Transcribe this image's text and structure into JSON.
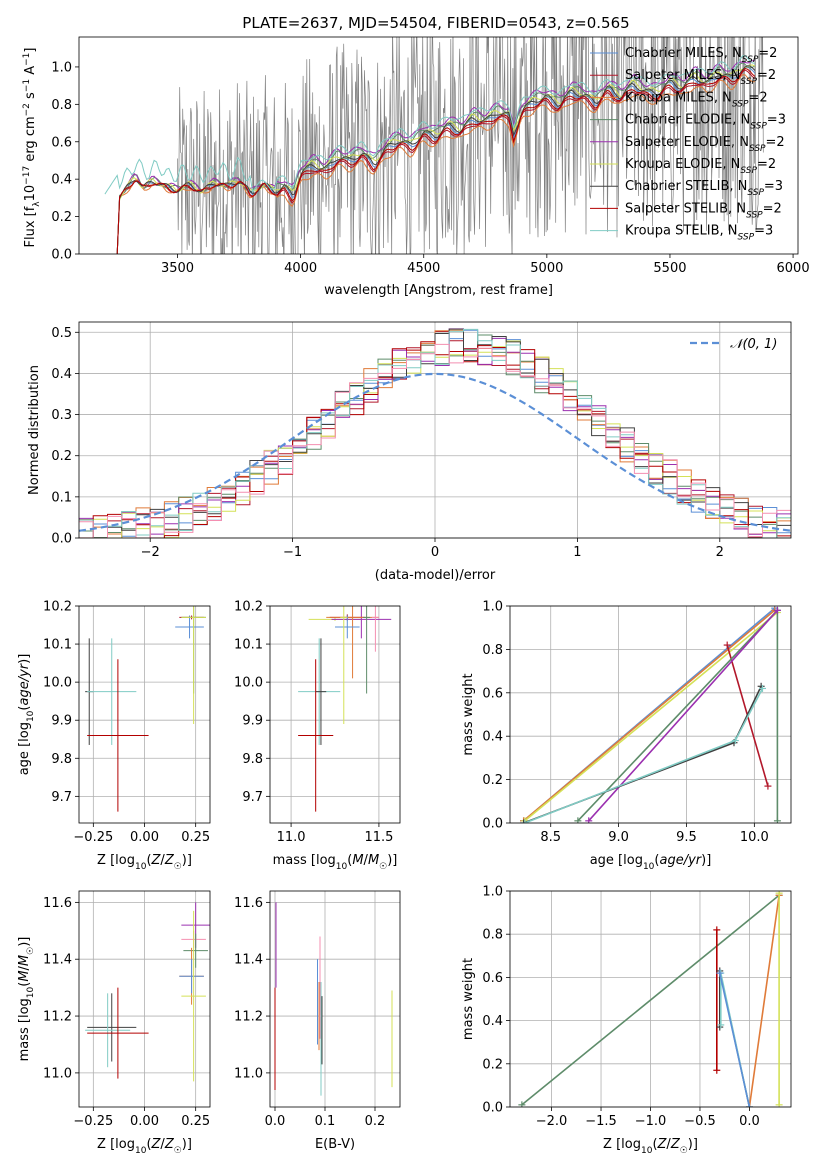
{
  "title": "PLATE=2637, MJD=54504, FIBERID=0543, z=0.565",
  "colors": {
    "Chabrier MILES": "#5b8fd6",
    "Salpeter MILES": "#b2182b",
    "Kroupa MILES": "#e07b39",
    "Chabrier ELODIE": "#5e8c6a",
    "Salpeter ELODIE": "#9b30b0",
    "Kroupa ELODIE": "#d4e157",
    "Chabrier STELIB": "#404040",
    "Salpeter STELIB": "#b30000",
    "Kroupa STELIB": "#80cbc4",
    "data": "#808080",
    "gauss": "#5b8fd6",
    "pink": "#f48fb1"
  },
  "legend_spectrum": [
    {
      "key": "Chabrier MILES",
      "text": "Chabrier MILES, N",
      "sub": "SSP",
      "tail": "=2"
    },
    {
      "key": "Salpeter MILES",
      "text": "Salpeter MILES, N",
      "sub": "SSP",
      "tail": "=2"
    },
    {
      "key": "Kroupa MILES",
      "text": "Kroupa MILES, N",
      "sub": "SSP",
      "tail": "=2"
    },
    {
      "key": "Chabrier ELODIE",
      "text": "Chabrier ELODIE, N",
      "sub": "SSP",
      "tail": "=3"
    },
    {
      "key": "Salpeter ELODIE",
      "text": "Salpeter ELODIE, N",
      "sub": "SSP",
      "tail": "=2"
    },
    {
      "key": "Kroupa ELODIE",
      "text": "Kroupa ELODIE, N",
      "sub": "SSP",
      "tail": "=2"
    },
    {
      "key": "Chabrier STELIB",
      "text": "Chabrier STELIB, N",
      "sub": "SSP",
      "tail": "=3"
    },
    {
      "key": "Salpeter STELIB",
      "text": "Salpeter STELIB, N",
      "sub": "SSP",
      "tail": "=2"
    },
    {
      "key": "Kroupa STELIB",
      "text": "Kroupa STELIB, N",
      "sub": "SSP",
      "tail": "=3"
    }
  ],
  "chart_data": [
    {
      "id": "spectrum",
      "type": "line",
      "title": "PLATE=2637, MJD=54504, FIBERID=0543, z=0.565",
      "xlabel": "wavelength [Angstrom, rest frame]",
      "ylabel": "Flux [f",
      "ylabel_full": "Flux [fλ10⁻¹⁷ erg cm⁻² s⁻¹ A⁻¹]",
      "xlim": [
        3100,
        6020
      ],
      "ylim": [
        0,
        1.16
      ],
      "xticks": [
        3500,
        4000,
        4500,
        5000,
        5500,
        6000
      ],
      "yticks": [
        0.0,
        0.2,
        0.4,
        0.6,
        0.8,
        1.0
      ],
      "grid": false,
      "legend": "top-right",
      "model_knots": {
        "x": [
          3255,
          3265,
          3300,
          3330,
          3360,
          3400,
          3450,
          3500,
          3550,
          3600,
          3650,
          3700,
          3750,
          3800,
          3850,
          3900,
          3935,
          3970,
          4000,
          4050,
          4100,
          4150,
          4200,
          4250,
          4300,
          4350,
          4400,
          4450,
          4500,
          4550,
          4600,
          4650,
          4700,
          4750,
          4800,
          4850,
          4863,
          4900,
          4950,
          5000,
          5050,
          5100,
          5150,
          5200,
          5250,
          5300,
          5350,
          5400,
          5450,
          5500,
          5550,
          5600,
          5650,
          5700,
          5750,
          5800,
          5850
        ],
        "y": [
          0.0,
          0.3,
          0.36,
          0.41,
          0.35,
          0.39,
          0.36,
          0.34,
          0.37,
          0.33,
          0.38,
          0.36,
          0.39,
          0.32,
          0.37,
          0.33,
          0.35,
          0.3,
          0.42,
          0.47,
          0.44,
          0.51,
          0.49,
          0.53,
          0.47,
          0.56,
          0.6,
          0.57,
          0.64,
          0.62,
          0.68,
          0.65,
          0.72,
          0.7,
          0.75,
          0.73,
          0.62,
          0.76,
          0.81,
          0.83,
          0.79,
          0.86,
          0.84,
          0.8,
          0.88,
          0.83,
          0.9,
          0.86,
          0.85,
          0.91,
          0.88,
          0.94,
          0.9,
          0.96,
          0.93,
          0.99,
          0.97
        ]
      },
      "series": [
        {
          "name": "Chabrier MILES, NSSP=2",
          "offset": 0.0
        },
        {
          "name": "Salpeter MILES, NSSP=2",
          "offset": -0.02
        },
        {
          "name": "Kroupa MILES, NSSP=2",
          "offset": -0.04
        },
        {
          "name": "Chabrier ELODIE, NSSP=3",
          "offset": 0.03
        },
        {
          "name": "Salpeter ELODIE, NSSP=2",
          "offset": 0.05
        },
        {
          "name": "Kroupa ELODIE, NSSP=2",
          "offset": 0.02
        },
        {
          "name": "Chabrier STELIB, NSSP=3",
          "offset": 0.01
        },
        {
          "name": "Salpeter STELIB, NSSP=2",
          "offset": -0.01
        },
        {
          "name": "Kroupa STELIB, NSSP=3",
          "offset": 0.06
        }
      ],
      "data_range": [
        3500,
        5880
      ]
    },
    {
      "id": "residuals",
      "type": "line",
      "xlabel": "(data-model)/error",
      "ylabel": "Normed distribution",
      "xlim": [
        -2.5,
        2.5
      ],
      "ylim": [
        0,
        0.525
      ],
      "xticks": [
        -2,
        -1,
        0,
        1,
        2
      ],
      "yticks": [
        0.0,
        0.1,
        0.2,
        0.3,
        0.4,
        0.5
      ],
      "grid": true,
      "legend": "top-right",
      "gauss_label": "𝒩(0, 1)",
      "bin_width": 0.1
    },
    {
      "id": "age-Z",
      "type": "scatter",
      "xlabel": "Z [log10(Z/Z☉)]",
      "ylabel": "age  [log10(age/yr)]",
      "xlim": [
        -0.32,
        0.32
      ],
      "ylim": [
        9.63,
        10.2
      ],
      "xticks": [
        -0.25,
        0.0,
        0.25
      ],
      "xticklabels": [
        "−0.25",
        "0.00",
        "0.25"
      ],
      "yticks": [
        9.7,
        9.8,
        9.9,
        10.0,
        10.1,
        10.2
      ],
      "grid": true,
      "crosses": [
        {
          "c": "Chabrier MILES",
          "x": 0.22,
          "xe": 0.07,
          "y": 10.145,
          "ye": 0.03
        },
        {
          "c": "Salpeter MILES",
          "x": 0.23,
          "xe": 0.06,
          "y": 10.17,
          "ye": 0.005
        },
        {
          "c": "Chabrier ELODIE",
          "x": 0.24,
          "xe": 0.06,
          "y": 10.17,
          "ye": 0.2
        },
        {
          "c": "Kroupa ELODIE",
          "x": 0.24,
          "xe": 0.06,
          "y": 10.17,
          "ye": 0.28
        },
        {
          "c": "Chabrier STELIB",
          "x": -0.27,
          "xe": 0.02,
          "y": 9.975,
          "ye": 0.14
        },
        {
          "c": "Kroupa STELIB",
          "x": -0.16,
          "xe": 0.12,
          "y": 9.975,
          "ye": 0.14
        },
        {
          "c": "Salpeter STELIB",
          "x": -0.13,
          "xe": 0.15,
          "y": 9.86,
          "ye": 0.2
        }
      ]
    },
    {
      "id": "age-mass",
      "type": "scatter",
      "xlabel": "mass [log10(M/M☉)]",
      "ylabel": "",
      "xlim": [
        10.88,
        11.62
      ],
      "ylim": [
        9.63,
        10.2
      ],
      "xticks": [
        11.0,
        11.5
      ],
      "xticklabels": [
        "11.0",
        "11.5"
      ],
      "yticks": [
        9.7,
        9.8,
        9.9,
        10.0,
        10.1,
        10.2
      ],
      "grid": true,
      "crosses": [
        {
          "c": "Kroupa ELODIE",
          "x": 11.25,
          "xe": 0.15,
          "y": 10.165,
          "ye": 0.004
        },
        {
          "c": "Salpeter ELODIE",
          "x": 11.4,
          "xe": 0.17,
          "y": 10.165,
          "ye": 0.05
        },
        {
          "c": "Salpeter MILES",
          "x": 11.32,
          "xe": 0.1,
          "y": 10.17,
          "ye": 0.008
        },
        {
          "c": "Kroupa MILES",
          "x": 11.35,
          "xe": 0.15,
          "y": 10.17,
          "ye": 0.16
        },
        {
          "c": "Chabrier MILES",
          "x": 11.32,
          "xe": 0.07,
          "y": 10.145,
          "ye": 0.03
        },
        {
          "c": "pink",
          "x": 11.48,
          "xe": 0.02,
          "y": 10.17,
          "ye": 0.09
        },
        {
          "c": "Chabrier ELODIE",
          "x": 11.43,
          "xe": 0.02,
          "y": 10.17,
          "ye": 0.2
        },
        {
          "c": "Kroupa ELODIE",
          "x": 11.3,
          "xe": 0.02,
          "y": 10.17,
          "ye": 0.28
        },
        {
          "c": "Kroupa STELIB",
          "x": 11.16,
          "xe": 0.12,
          "y": 9.975,
          "ye": 0.14
        },
        {
          "c": "Chabrier STELIB",
          "x": 11.17,
          "xe": 0.03,
          "y": 9.975,
          "ye": 0.14
        },
        {
          "c": "Salpeter STELIB",
          "x": 11.14,
          "xe": 0.1,
          "y": 9.86,
          "ye": 0.2
        }
      ]
    },
    {
      "id": "weight-age",
      "type": "line",
      "xlabel": "age  [log10(age/yr)]",
      "ylabel": "mass weight",
      "xlim": [
        8.2,
        10.27
      ],
      "ylim": [
        0,
        1.0
      ],
      "xticks": [
        8.5,
        9.0,
        9.5,
        10.0
      ],
      "xticklabels": [
        "8.5",
        "9.0",
        "9.5",
        "10.0"
      ],
      "yticks": [
        0.0,
        0.2,
        0.4,
        0.6,
        0.8,
        1.0
      ],
      "grid": true,
      "series": [
        {
          "c": "Chabrier MILES",
          "x": [
            8.3,
            10.15
          ],
          "y": [
            0.01,
            0.99
          ]
        },
        {
          "c": "Kroupa MILES",
          "x": [
            8.3,
            10.15
          ],
          "y": [
            0.01,
            0.98
          ]
        },
        {
          "c": "Kroupa ELODIE",
          "x": [
            8.31,
            10.17
          ],
          "y": [
            0.01,
            0.97
          ]
        },
        {
          "c": "Salpeter MILES",
          "x": [
            9.8,
            10.1
          ],
          "y": [
            0.82,
            0.17
          ]
        },
        {
          "c": "Chabrier ELODIE",
          "x": [
            8.7,
            10.17,
            10.17
          ],
          "y": [
            0.01,
            0.98,
            0.01
          ]
        },
        {
          "c": "Salpeter ELODIE",
          "x": [
            8.78,
            10.17
          ],
          "y": [
            0.01,
            0.98
          ]
        },
        {
          "c": "Chabrier STELIB",
          "x": [
            8.3,
            9.85,
            10.05
          ],
          "y": [
            0.0,
            0.37,
            0.63
          ]
        },
        {
          "c": "Kroupa STELIB",
          "x": [
            8.31,
            9.86,
            10.06
          ],
          "y": [
            0.0,
            0.38,
            0.62
          ]
        }
      ]
    },
    {
      "id": "mass-Z",
      "type": "scatter",
      "xlabel": "Z [log10(Z/Z☉)]",
      "ylabel": "mass [log10(M/M☉)]",
      "xlim": [
        -0.32,
        0.32
      ],
      "ylim": [
        10.88,
        11.64
      ],
      "xticks": [
        -0.25,
        0.0,
        0.25
      ],
      "xticklabels": [
        "−0.25",
        "0.00",
        "0.25"
      ],
      "yticks": [
        11.0,
        11.2,
        11.4,
        11.6
      ],
      "grid": true,
      "crosses": [
        {
          "c": "Salpeter ELODIE",
          "x": 0.25,
          "xe": 0.07,
          "y": 11.52,
          "ye": 0.08
        },
        {
          "c": "pink",
          "x": 0.24,
          "xe": 0.06,
          "y": 11.47,
          "ye": 0.03
        },
        {
          "c": "Chabrier ELODIE",
          "x": 0.25,
          "xe": 0.06,
          "y": 11.43,
          "ye": 0.06
        },
        {
          "c": "Kroupa MILES",
          "x": 0.23,
          "xe": 0.06,
          "y": 11.34,
          "ye": 0.1
        },
        {
          "c": "Chabrier MILES",
          "x": 0.23,
          "xe": 0.06,
          "y": 11.34,
          "ye": 0.06
        },
        {
          "c": "Kroupa ELODIE",
          "x": 0.24,
          "xe": 0.06,
          "y": 11.27,
          "ye": 0.3
        },
        {
          "c": "Chabrier STELIB",
          "x": -0.16,
          "xe": 0.12,
          "y": 11.16,
          "ye": 0.12
        },
        {
          "c": "Kroupa STELIB",
          "x": -0.18,
          "xe": 0.11,
          "y": 11.15,
          "ye": 0.13
        },
        {
          "c": "Salpeter STELIB",
          "x": -0.13,
          "xe": 0.15,
          "y": 11.14,
          "ye": 0.16
        }
      ]
    },
    {
      "id": "mass-EBV",
      "type": "scatter",
      "xlabel": "E(B-V)",
      "ylabel": "",
      "xlim": [
        -0.01,
        0.25
      ],
      "ylim": [
        10.88,
        11.64
      ],
      "xticks": [
        0.0,
        0.1,
        0.2
      ],
      "xticklabels": [
        "0.0",
        "0.1",
        "0.2"
      ],
      "yticks": [
        11.0,
        11.2,
        11.4,
        11.6
      ],
      "grid": true,
      "crosses": [
        {
          "c": "Salpeter ELODIE",
          "x": 0.002,
          "xe": 0.0,
          "y": 11.45,
          "ye": 0.15
        },
        {
          "c": "Salpeter STELIB",
          "x": 0.0,
          "xe": 0.0,
          "y": 11.12,
          "ye": 0.18
        },
        {
          "c": "Chabrier MILES",
          "x": 0.085,
          "xe": 0.0,
          "y": 11.25,
          "ye": 0.15
        },
        {
          "c": "pink",
          "x": 0.09,
          "xe": 0.0,
          "y": 11.3,
          "ye": 0.18
        },
        {
          "c": "Kroupa MILES",
          "x": 0.088,
          "xe": 0.0,
          "y": 11.2,
          "ye": 0.12
        },
        {
          "c": "Chabrier STELIB",
          "x": 0.094,
          "xe": 0.0,
          "y": 11.15,
          "ye": 0.12
        },
        {
          "c": "Kroupa STELIB",
          "x": 0.092,
          "xe": 0.0,
          "y": 11.12,
          "ye": 0.2
        },
        {
          "c": "Kroupa ELODIE",
          "x": 0.234,
          "xe": 0.0,
          "y": 11.12,
          "ye": 0.17
        }
      ]
    },
    {
      "id": "weight-Z",
      "type": "line",
      "xlabel": "Z [log10(Z/Z☉)]",
      "ylabel": "mass weight",
      "xlim": [
        -2.42,
        0.42
      ],
      "ylim": [
        0,
        1.0
      ],
      "xticks": [
        -2.0,
        -1.5,
        -1.0,
        -0.5,
        0.0
      ],
      "xticklabels": [
        "−2.0",
        "−1.5",
        "−1.0",
        "−0.5",
        "0.0"
      ],
      "yticks": [
        0.0,
        0.2,
        0.4,
        0.6,
        0.8,
        1.0
      ],
      "grid": true,
      "series": [
        {
          "c": "Chabrier ELODIE",
          "x": [
            -2.3,
            0.3
          ],
          "y": [
            0.01,
            0.98
          ]
        },
        {
          "c": "Kroupa MILES",
          "x": [
            0.0,
            0.3
          ],
          "y": [
            0.0,
            0.98
          ]
        },
        {
          "c": "Kroupa ELODIE",
          "x": [
            0.3,
            0.3
          ],
          "y": [
            0.01,
            0.99
          ]
        },
        {
          "c": "Salpeter STELIB",
          "x": [
            -0.33,
            -0.33
          ],
          "y": [
            0.17,
            0.82
          ]
        },
        {
          "c": "Chabrier STELIB",
          "x": [
            -0.3,
            -0.3,
            0.0
          ],
          "y": [
            0.37,
            0.63,
            0.0
          ]
        },
        {
          "c": "Kroupa STELIB",
          "x": [
            -0.29,
            -0.29,
            0.0
          ],
          "y": [
            0.38,
            0.62,
            0.0
          ]
        },
        {
          "c": "Chabrier MILES",
          "x": [
            -0.3,
            0.0
          ],
          "y": [
            0.62,
            0.0
          ]
        }
      ]
    }
  ]
}
